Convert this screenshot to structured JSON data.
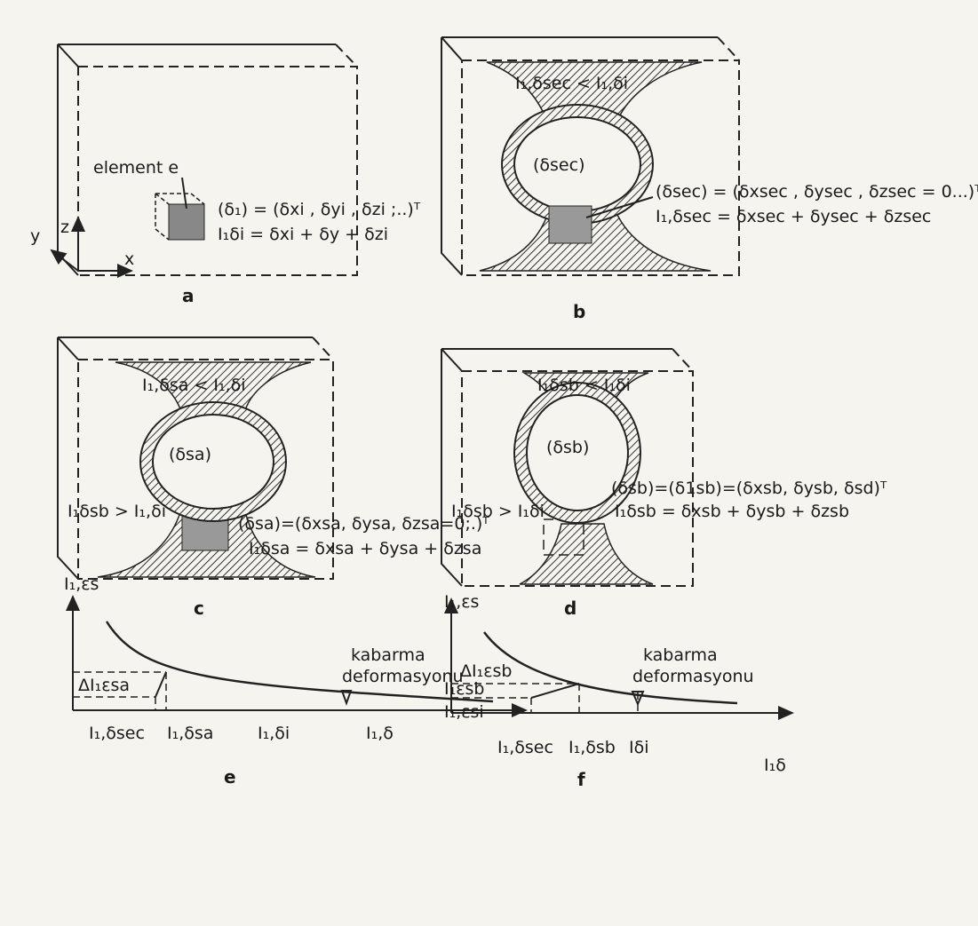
{
  "panels": {
    "a": {
      "caption": "a",
      "element_label": "element e",
      "axis_y": "y",
      "axis_z": "z",
      "axis_x": "x",
      "formula_1": "(δ₁) = (δxi , δyi , δzi ;..)ᵀ",
      "formula_2": "I₁δi = δxi + δy + δzi"
    },
    "b": {
      "caption": "b",
      "top_label": "I₁,δsec < I₁,δi",
      "ring_label": "(δsec)",
      "formula_1": "(δsec) = (δxsec , δysec , δzsec = 0...)ᵀ",
      "formula_2": "I₁,δsec = δxsec + δysec + δzsec"
    },
    "c": {
      "caption": "c",
      "top_label": "I₁,δsa < I₁,δi",
      "ring_label": "(δsa)",
      "side_label": "I₁δsb > I₁,δi",
      "formula_1": "(δsa)=(δxsa, δysa, δzsa=0;.)ᵀ",
      "formula_2": "I₁δsa = δxsa + δysa + δzsa"
    },
    "d": {
      "caption": "d",
      "top_label": "I₁δsb < I₁δi",
      "ring_label": "(δsb)",
      "side_label": "I₁δsb > I₁δi",
      "formula_1": "(δsb)=(δ1sb)=(δxsb, δysb, δsd)ᵀ",
      "formula_2": "I₁δsb = δxsb + δysb + δzsb"
    },
    "e": {
      "caption": "e",
      "y_axis": "I₁,εs",
      "delta_label": "ΔI₁εsa",
      "note_line_1": "kabarma",
      "note_line_2": "deformasyonu",
      "x_labels": [
        "I₁,δsec",
        "I₁,δsa",
        "I₁,δi"
      ],
      "x_axis": "I₁,δ"
    },
    "f": {
      "caption": "f",
      "y_axis": "I₁,εs",
      "delta_label": "ΔI₁εsb",
      "level_1": "I₁εsb",
      "level_2": "I₁,εsi",
      "note_line_1": "kabarma",
      "note_line_2": "deformasyonu",
      "x_labels": [
        "I₁,δsec",
        "I₁,δsb",
        "Iδi"
      ],
      "x_axis": "I₁δ"
    }
  }
}
